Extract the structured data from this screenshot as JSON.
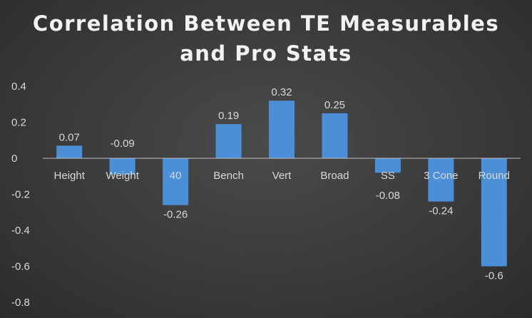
{
  "chart_data": {
    "type": "bar",
    "title_lines": [
      "Correlation Between TE Measurables",
      "and Pro Stats"
    ],
    "categories": [
      "Height",
      "Weight",
      "40",
      "Bench",
      "Vert",
      "Broad",
      "SS",
      "3 Cone",
      "Round"
    ],
    "values": [
      0.07,
      -0.09,
      -0.26,
      0.19,
      0.32,
      0.25,
      -0.08,
      -0.24,
      -0.6
    ],
    "data_labels": [
      "0.07",
      "-0.09",
      "-0.26",
      "0.19",
      "0.32",
      "0.25",
      "-0.08",
      "-0.24",
      "-0.6"
    ],
    "ylim": [
      -0.8,
      0.4
    ],
    "yticks": [
      0.4,
      0.2,
      0,
      -0.2,
      -0.4,
      -0.6,
      -0.8
    ],
    "ytick_labels": [
      "0.4",
      "0.2",
      "0",
      "-0.2",
      "-0.4",
      "-0.6",
      "-0.8"
    ],
    "bar_color": "#4a8fd8",
    "grid": false,
    "legend": "none"
  }
}
